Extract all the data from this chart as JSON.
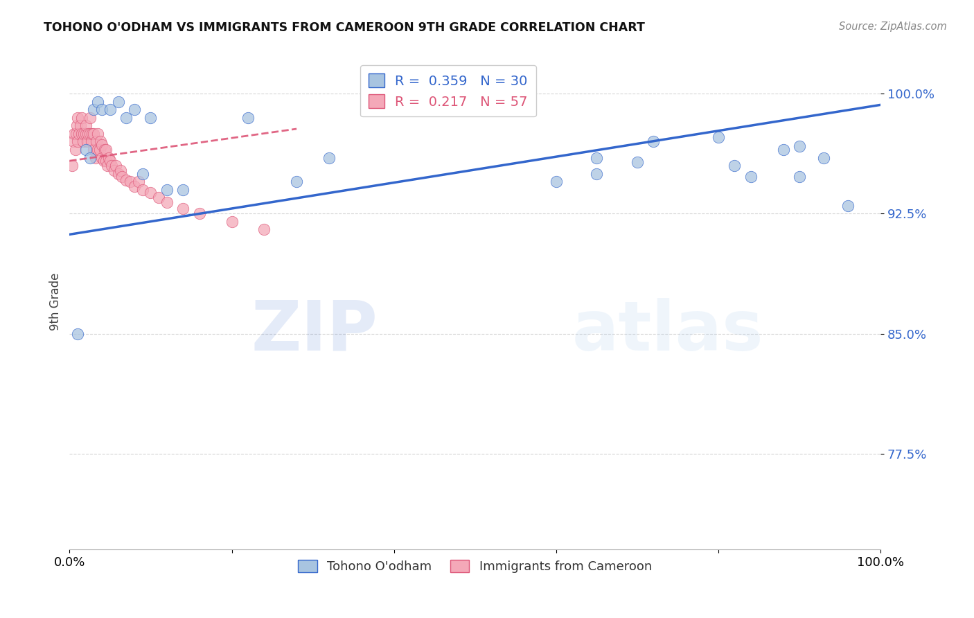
{
  "title": "TOHONO O'ODHAM VS IMMIGRANTS FROM CAMEROON 9TH GRADE CORRELATION CHART",
  "source": "Source: ZipAtlas.com",
  "ylabel": "9th Grade",
  "xlim": [
    0.0,
    1.0
  ],
  "ylim": [
    0.715,
    1.025
  ],
  "yticks": [
    0.775,
    0.85,
    0.925,
    1.0
  ],
  "ytick_labels": [
    "77.5%",
    "85.0%",
    "92.5%",
    "100.0%"
  ],
  "xticks": [
    0.0,
    0.2,
    0.4,
    0.6,
    0.8,
    1.0
  ],
  "xtick_labels": [
    "0.0%",
    "",
    "",
    "",
    "",
    "100.0%"
  ],
  "blue_R": 0.359,
  "blue_N": 30,
  "pink_R": 0.217,
  "pink_N": 57,
  "blue_color": "#A8C4E0",
  "pink_color": "#F4A8B8",
  "blue_line_color": "#3366CC",
  "pink_line_color": "#DD5577",
  "legend_blue_label": "Tohono O'odham",
  "legend_pink_label": "Immigrants from Cameroon",
  "watermark_zip": "ZIP",
  "watermark_atlas": "atlas",
  "blue_x": [
    0.01,
    0.02,
    0.025,
    0.03,
    0.035,
    0.04,
    0.05,
    0.06,
    0.07,
    0.08,
    0.09,
    0.1,
    0.12,
    0.14,
    0.22,
    0.28,
    0.32,
    0.6,
    0.65,
    0.65,
    0.7,
    0.72,
    0.8,
    0.82,
    0.84,
    0.88,
    0.9,
    0.9,
    0.93,
    0.96
  ],
  "blue_y": [
    0.85,
    0.965,
    0.96,
    0.99,
    0.995,
    0.99,
    0.99,
    0.995,
    0.985,
    0.99,
    0.95,
    0.985,
    0.94,
    0.94,
    0.985,
    0.945,
    0.96,
    0.945,
    0.96,
    0.95,
    0.957,
    0.97,
    0.973,
    0.955,
    0.948,
    0.965,
    0.967,
    0.948,
    0.96,
    0.93
  ],
  "pink_x": [
    0.003,
    0.005,
    0.006,
    0.007,
    0.008,
    0.009,
    0.01,
    0.01,
    0.012,
    0.013,
    0.015,
    0.015,
    0.017,
    0.018,
    0.02,
    0.02,
    0.022,
    0.023,
    0.025,
    0.025,
    0.027,
    0.028,
    0.03,
    0.03,
    0.032,
    0.033,
    0.035,
    0.035,
    0.037,
    0.038,
    0.04,
    0.04,
    0.042,
    0.043,
    0.045,
    0.045,
    0.047,
    0.048,
    0.05,
    0.052,
    0.055,
    0.057,
    0.06,
    0.063,
    0.065,
    0.07,
    0.075,
    0.08,
    0.085,
    0.09,
    0.1,
    0.11,
    0.12,
    0.14,
    0.16,
    0.2,
    0.24
  ],
  "pink_y": [
    0.955,
    0.97,
    0.975,
    0.965,
    0.975,
    0.98,
    0.97,
    0.985,
    0.975,
    0.98,
    0.975,
    0.985,
    0.97,
    0.975,
    0.975,
    0.98,
    0.97,
    0.975,
    0.975,
    0.985,
    0.97,
    0.975,
    0.965,
    0.975,
    0.96,
    0.97,
    0.965,
    0.975,
    0.965,
    0.97,
    0.96,
    0.968,
    0.958,
    0.965,
    0.958,
    0.965,
    0.955,
    0.96,
    0.958,
    0.955,
    0.952,
    0.955,
    0.95,
    0.952,
    0.948,
    0.946,
    0.945,
    0.942,
    0.945,
    0.94,
    0.938,
    0.935,
    0.932,
    0.928,
    0.925,
    0.92,
    0.915
  ],
  "blue_line_x0": 0.0,
  "blue_line_x1": 1.0,
  "blue_line_y0": 0.912,
  "blue_line_y1": 0.993,
  "pink_line_x0": 0.0,
  "pink_line_x1": 0.28,
  "pink_line_y0": 0.958,
  "pink_line_y1": 0.978
}
